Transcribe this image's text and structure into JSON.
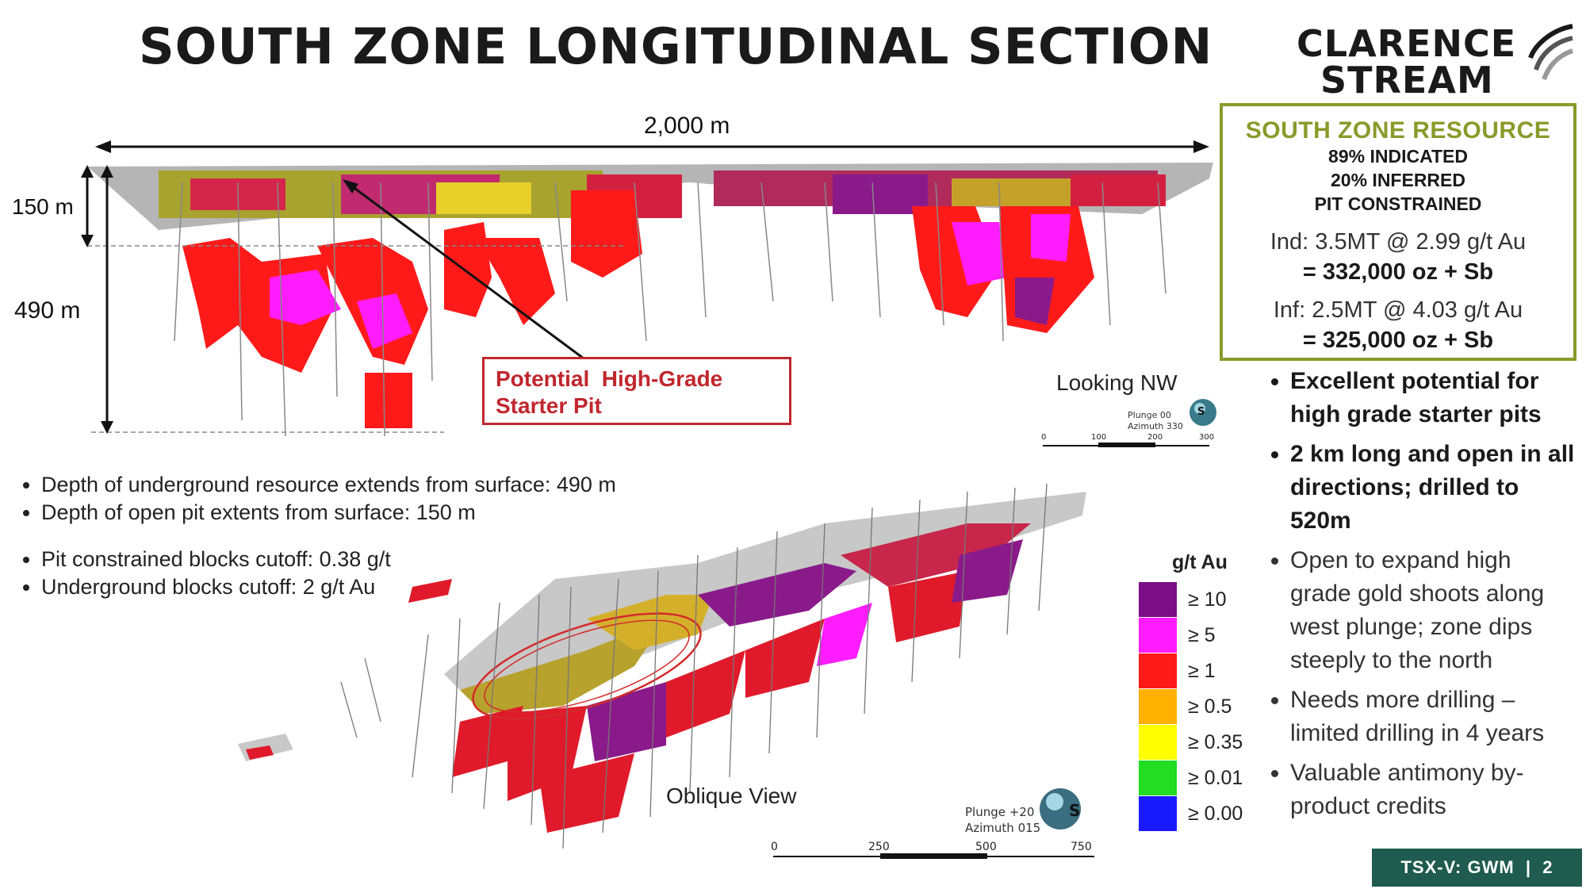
{
  "title": "SOUTH ZONE LONGITUDINAL SECTION",
  "logo": {
    "line1": "CLARENCE",
    "line2": "STREAM"
  },
  "resource_box": {
    "heading": "SOUTH ZONE RESOURCE",
    "line1": "89% INDICATED",
    "line2": "20% INFERRED",
    "line3": "PIT CONSTRAINED",
    "ind_line": "Ind: 3.5MT @ 2.99 g/t Au",
    "ind_total": "= 332,000 oz + Sb",
    "inf_line": "Inf: 2.5MT @ 4.03 g/t Au",
    "inf_total": "= 325,000 oz + Sb"
  },
  "right_bullets": [
    "Excellent potential for high grade starter pits",
    "2 km long and open in all directions; drilled to 520m",
    "Open to expand high grade gold shoots along west plunge; zone dips steeply to the north",
    "Needs more drilling – limited drilling in 4 years",
    "Valuable antimony by-product credits"
  ],
  "left_bullets_group1": [
    "Depth of underground resource extends from surface: 490 m",
    "Depth of open pit extents from surface: 150 m"
  ],
  "left_bullets_group2": [
    "Pit constrained blocks cutoff: 0.38 g/t",
    "Underground blocks cutoff: 2 g/t Au"
  ],
  "section": {
    "width_label": "2,000 m",
    "pit_depth_label": "150 m",
    "ug_depth_label": "490 m",
    "starter_pit_line1": "Potential  High-Grade",
    "starter_pit_line2": "Starter Pit",
    "view_label": "Looking NW",
    "plunge": "Plunge 00",
    "azimuth": "Azimuth 330",
    "compass_letter": "S",
    "scale_ticks": [
      "0",
      "100",
      "200",
      "300"
    ]
  },
  "oblique": {
    "view_label": "Oblique View",
    "plunge": "Plunge +20",
    "azimuth": "Azimuth 015",
    "compass_letter": "S",
    "scale_ticks": [
      "0",
      "250",
      "500",
      "750"
    ]
  },
  "legend": {
    "title": "g/t Au",
    "items": [
      {
        "label": "≥ 10",
        "color": "#7b0d85"
      },
      {
        "label": "≥ 5",
        "color": "#ff1cff"
      },
      {
        "label": "≥ 1",
        "color": "#ff1a1a"
      },
      {
        "label": "≥ 0.5",
        "color": "#ffb000"
      },
      {
        "label": "≥ 0.35",
        "color": "#ffff00"
      },
      {
        "label": "≥ 0.01",
        "color": "#22dd22"
      },
      {
        "label": "≥ 0.00",
        "color": "#1a1aff"
      }
    ]
  },
  "footer": {
    "ticker": "TSX-V: GWM",
    "separator": "|",
    "page": "2"
  },
  "colors": {
    "brand_green": "#8a9a2a",
    "footer_bg": "#1f5b4e",
    "starter_red": "#c0272d"
  }
}
